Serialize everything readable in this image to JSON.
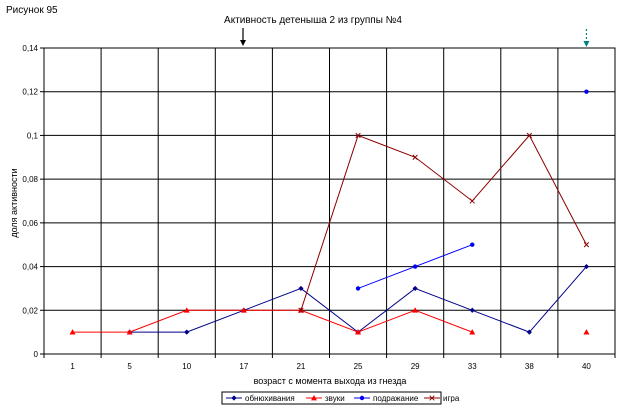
{
  "figure_label": "Рисунок 95",
  "colors": {
    "обнюхивания": "#00008B",
    "звуки": "#FF0000",
    "подражание": "#0000FF",
    "игра": "#8B0000",
    "arrow_right": "#008080"
  },
  "chart_data": {
    "type": "line",
    "title": "Активность детеныша 2 из группы №4",
    "xlabel": "возраст с момента выхода из гнезда",
    "ylabel": "доля активности",
    "categories": [
      "1",
      "5",
      "10",
      "17",
      "21",
      "25",
      "29",
      "33",
      "38",
      "40"
    ],
    "y_tick_labels": [
      "0",
      "0,02",
      "0,04",
      "0,06",
      "0,08",
      "0,1",
      "0,12",
      "0,14"
    ],
    "ylim": [
      0,
      0.14
    ],
    "grid": true,
    "legend_position": "bottom",
    "series": [
      {
        "name": "обнюхивания",
        "marker": "diamond",
        "values": [
          null,
          0.01,
          0.01,
          0.02,
          0.03,
          0.01,
          0.03,
          0.02,
          0.01,
          0.04
        ]
      },
      {
        "name": "звуки",
        "marker": "triangle",
        "values": [
          0.01,
          0.01,
          0.02,
          0.02,
          0.02,
          0.01,
          0.02,
          0.01,
          null,
          0.01
        ]
      },
      {
        "name": "подражание",
        "marker": "dot",
        "values": [
          null,
          null,
          null,
          null,
          null,
          0.03,
          0.04,
          0.05,
          null,
          0.12
        ]
      },
      {
        "name": "игра",
        "marker": "x",
        "values": [
          null,
          null,
          null,
          null,
          0.02,
          0.1,
          0.09,
          0.07,
          0.1,
          0.05
        ]
      }
    ]
  }
}
